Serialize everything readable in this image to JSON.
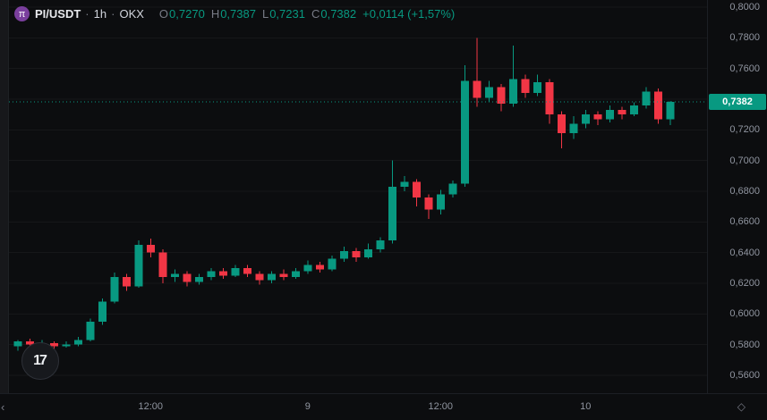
{
  "legend": {
    "symbol": "PI/USDT",
    "sep": "·",
    "interval": "1h",
    "exchange": "OKX",
    "logo_glyph": "π",
    "ohlc": {
      "o_label": "O",
      "o": "0,7270",
      "h_label": "H",
      "h": "0,7387",
      "l_label": "L",
      "l": "0,7231",
      "c_label": "C",
      "c": "0,7382"
    },
    "change": "+0,0114 (+1,57%)"
  },
  "price_axis": {
    "last_price_label": "0,7382"
  },
  "icons": {
    "scale_settings_glyph": "◇",
    "scroll_left_glyph": "‹"
  },
  "footer": {
    "tv_logo_glyph": "17"
  },
  "chart_data": {
    "type": "candlestick",
    "title": "PI/USDT · 1h · OKX",
    "interval": "1h",
    "ylim": [
      0.556,
      0.802
    ],
    "grid": "faint-horizontal",
    "colors": {
      "up": "#089981",
      "down": "#f23645",
      "last_price_line": "#089981"
    },
    "current": {
      "open": 0.727,
      "high": 0.7387,
      "low": 0.7231,
      "close": 0.7382,
      "change": "+0,0114",
      "change_pct": "+1,57%"
    },
    "price_ticks": [
      {
        "v": 0.8,
        "label": "0,8000"
      },
      {
        "v": 0.78,
        "label": "0,7800"
      },
      {
        "v": 0.76,
        "label": "0,7600"
      },
      {
        "v": 0.74,
        "label": "0,7400"
      },
      {
        "v": 0.72,
        "label": "0,7200"
      },
      {
        "v": 0.7,
        "label": "0,7000"
      },
      {
        "v": 0.68,
        "label": "0,6800"
      },
      {
        "v": 0.66,
        "label": "0,6600"
      },
      {
        "v": 0.64,
        "label": "0,6400"
      },
      {
        "v": 0.62,
        "label": "0,6200"
      },
      {
        "v": 0.6,
        "label": "0,6000"
      },
      {
        "v": 0.58,
        "label": "0,5800"
      },
      {
        "v": 0.56,
        "label": "0,5600"
      }
    ],
    "time_ticks": [
      {
        "i": 11,
        "label": "12:00"
      },
      {
        "i": 24,
        "label": "9"
      },
      {
        "i": 35,
        "label": "12:00"
      },
      {
        "i": 47,
        "label": "10"
      }
    ],
    "candles": [
      [
        0.579,
        0.583,
        0.576,
        0.582
      ],
      [
        0.582,
        0.584,
        0.578,
        0.58
      ],
      [
        0.58,
        0.583,
        0.579,
        0.581
      ],
      [
        0.581,
        0.582,
        0.577,
        0.579
      ],
      [
        0.579,
        0.582,
        0.578,
        0.58
      ],
      [
        0.58,
        0.585,
        0.579,
        0.583
      ],
      [
        0.583,
        0.597,
        0.582,
        0.595
      ],
      [
        0.595,
        0.61,
        0.593,
        0.608
      ],
      [
        0.608,
        0.627,
        0.607,
        0.624
      ],
      [
        0.624,
        0.626,
        0.615,
        0.618
      ],
      [
        0.618,
        0.648,
        0.617,
        0.645
      ],
      [
        0.645,
        0.649,
        0.637,
        0.64
      ],
      [
        0.64,
        0.642,
        0.62,
        0.624
      ],
      [
        0.624,
        0.629,
        0.621,
        0.626
      ],
      [
        0.626,
        0.628,
        0.618,
        0.621
      ],
      [
        0.621,
        0.626,
        0.619,
        0.624
      ],
      [
        0.624,
        0.63,
        0.622,
        0.628
      ],
      [
        0.628,
        0.63,
        0.623,
        0.625
      ],
      [
        0.625,
        0.632,
        0.624,
        0.63
      ],
      [
        0.63,
        0.632,
        0.624,
        0.626
      ],
      [
        0.626,
        0.628,
        0.619,
        0.622
      ],
      [
        0.622,
        0.628,
        0.62,
        0.626
      ],
      [
        0.626,
        0.629,
        0.622,
        0.624
      ],
      [
        0.624,
        0.63,
        0.623,
        0.628
      ],
      [
        0.628,
        0.635,
        0.626,
        0.632
      ],
      [
        0.632,
        0.634,
        0.627,
        0.629
      ],
      [
        0.629,
        0.638,
        0.628,
        0.636
      ],
      [
        0.636,
        0.644,
        0.634,
        0.641
      ],
      [
        0.641,
        0.643,
        0.634,
        0.637
      ],
      [
        0.637,
        0.646,
        0.636,
        0.642
      ],
      [
        0.642,
        0.65,
        0.64,
        0.648
      ],
      [
        0.648,
        0.7,
        0.646,
        0.683
      ],
      [
        0.683,
        0.69,
        0.68,
        0.686
      ],
      [
        0.686,
        0.688,
        0.67,
        0.676
      ],
      [
        0.676,
        0.678,
        0.662,
        0.668
      ],
      [
        0.668,
        0.681,
        0.665,
        0.678
      ],
      [
        0.678,
        0.687,
        0.676,
        0.685
      ],
      [
        0.685,
        0.762,
        0.683,
        0.752
      ],
      [
        0.752,
        0.78,
        0.735,
        0.741
      ],
      [
        0.741,
        0.752,
        0.738,
        0.748
      ],
      [
        0.748,
        0.75,
        0.732,
        0.737
      ],
      [
        0.737,
        0.775,
        0.735,
        0.753
      ],
      [
        0.753,
        0.756,
        0.741,
        0.744
      ],
      [
        0.744,
        0.756,
        0.742,
        0.751
      ],
      [
        0.751,
        0.753,
        0.724,
        0.73
      ],
      [
        0.73,
        0.732,
        0.708,
        0.718
      ],
      [
        0.718,
        0.729,
        0.714,
        0.724
      ],
      [
        0.724,
        0.733,
        0.721,
        0.73
      ],
      [
        0.73,
        0.732,
        0.723,
        0.727
      ],
      [
        0.727,
        0.736,
        0.725,
        0.733
      ],
      [
        0.733,
        0.735,
        0.727,
        0.73
      ],
      [
        0.73,
        0.738,
        0.729,
        0.736
      ],
      [
        0.736,
        0.748,
        0.734,
        0.745
      ],
      [
        0.745,
        0.747,
        0.724,
        0.727
      ],
      [
        0.727,
        0.7387,
        0.7231,
        0.7382
      ]
    ]
  }
}
